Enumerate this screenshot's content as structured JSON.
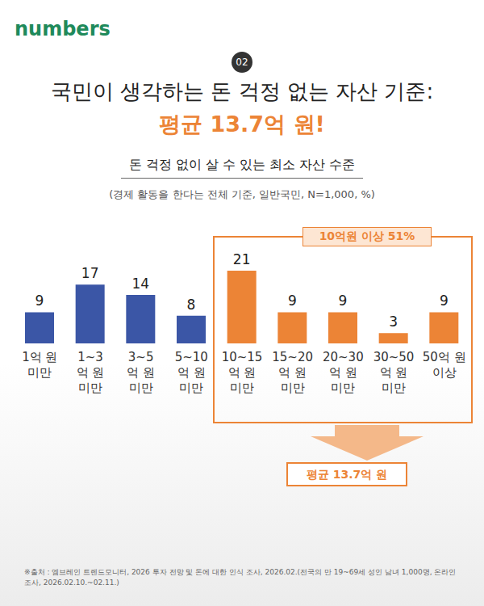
{
  "header": {
    "logo": "numbers",
    "number": "02",
    "title": "국민이 생각하는 돈 걱정 없는 자산 기준:",
    "highlight": "평균 13.7억 원!"
  },
  "chart_data": {
    "type": "bar",
    "title": "돈 걱정 없이 살 수 있는 최소 자산 수준",
    "subtitle": "(경제 활동을 한다는 전체 기준, 일반국민, N=1,000, %)",
    "categories": [
      "1억 원\n미만",
      "1~3\n억 원\n미만",
      "3~5\n억 원\n미만",
      "5~10\n억 원\n미만",
      "10~15\n억 원\n미만",
      "15~20\n억 원\n미만",
      "20~30\n억 원\n미만",
      "30~50\n억 원\n미만",
      "50억 원\n이상"
    ],
    "values": [
      9,
      17,
      14,
      8,
      21,
      9,
      9,
      3,
      9
    ],
    "colors": [
      "#3b56a6",
      "#3b56a6",
      "#3b56a6",
      "#3b56a6",
      "#ec8436",
      "#ec8436",
      "#ec8436",
      "#ec8436",
      "#ec8436"
    ],
    "ylim": [
      0,
      25
    ],
    "data_labels": true,
    "tick_labels": "x",
    "annotations": [
      "10억원 이상 51%",
      "평균 13.7억 원"
    ]
  },
  "source": "※출처 : 엠브레인 트렌드모니터, 2026 투자 전망 및 돈에 대한 인식 조사, 2026.02.(전국의 만 19~69세 성인 남녀 1,000명, 온라인 조사, 2026.02.10.~02.11.)"
}
